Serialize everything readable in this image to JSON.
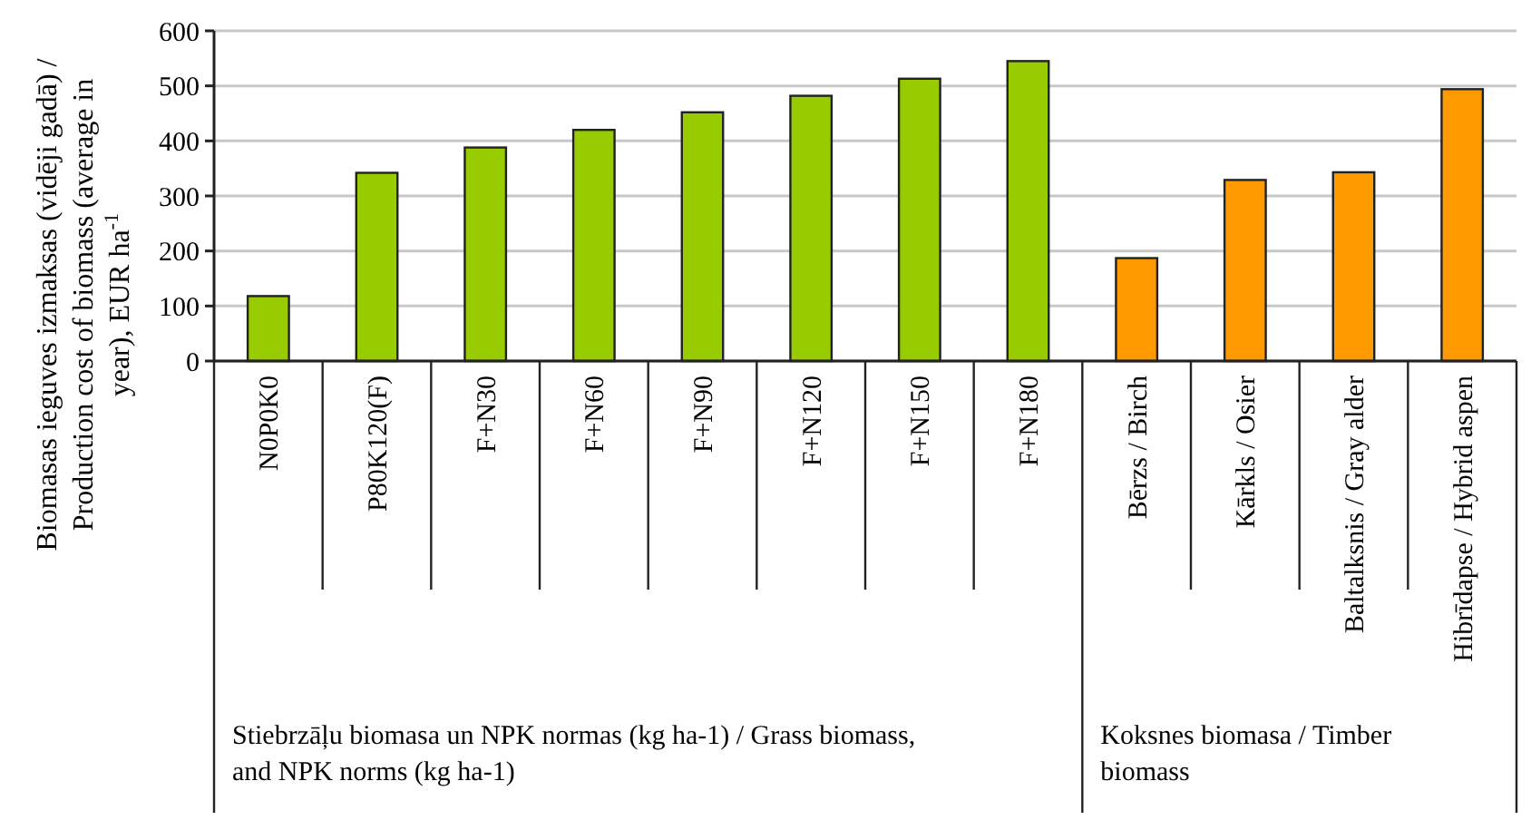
{
  "chart_data": {
    "type": "bar",
    "ylabel": "Biomasas ieguves izmaksas (vidēji gadā) / Production cost of biomass (average in year), EUR ha$^{-1}$",
    "categories": [
      "N0P0K0",
      "P80K120(F)",
      "F+N30",
      "F+N60",
      "F+N90",
      "F+N120",
      "F+N150",
      "F+N180",
      "Bērzs / Birch",
      "Kārkls / Osier",
      "Baltalksnis / Gray alder",
      "Hibrīdapse / Hybrid aspen"
    ],
    "series": [
      {
        "color": "#99cc00",
        "values": [
          118,
          342,
          388,
          420,
          452,
          482,
          513,
          545,
          null,
          null,
          null,
          null
        ]
      },
      {
        "color": "#ff9900",
        "values": [
          null,
          null,
          null,
          null,
          null,
          null,
          null,
          null,
          187,
          329,
          343,
          494
        ]
      }
    ],
    "annotations": [
      "Stiebrzāļu biomasa un NPK normas (kg ha-1) / Grass biomass, and NPK norms (kg ha-1)",
      "Koksnes biomasa / Timber biomass"
    ],
    "ylim": [
      0,
      600
    ],
    "yticks": [
      0,
      100,
      200,
      300,
      400,
      500,
      600
    ],
    "grid": "y"
  }
}
